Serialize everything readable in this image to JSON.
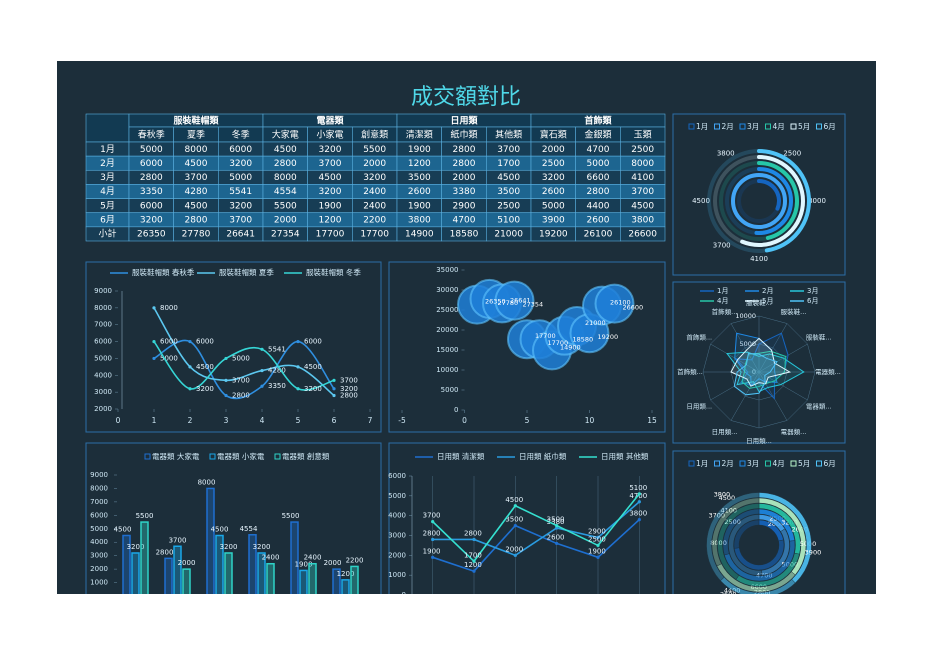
{
  "title": "成交額對比",
  "table": {
    "groups": [
      "服裝鞋帽類",
      "電器類",
      "日用類",
      "首飾類"
    ],
    "columns": [
      "春秋季",
      "夏季",
      "冬季",
      "大家電",
      "小家電",
      "創意類",
      "清潔類",
      "紙巾類",
      "其他類",
      "寶石類",
      "金銀類",
      "玉類"
    ],
    "rows": [
      [
        "1月",
        5000,
        8000,
        6000,
        4500,
        3200,
        5500,
        1900,
        2800,
        3700,
        2000,
        4700,
        2500
      ],
      [
        "2月",
        6000,
        4500,
        3200,
        2800,
        3700,
        2000,
        1200,
        2800,
        1700,
        2500,
        5000,
        8000
      ],
      [
        "3月",
        2800,
        3700,
        5000,
        8000,
        4500,
        3200,
        3500,
        2000,
        4500,
        3200,
        6600,
        4100
      ],
      [
        "4月",
        3350,
        4280,
        5541,
        4554,
        3200,
        2400,
        2600,
        3380,
        3500,
        2600,
        2800,
        3700
      ],
      [
        "5月",
        6000,
        4500,
        3200,
        5500,
        1900,
        2400,
        1900,
        2900,
        2500,
        5000,
        4400,
        4500
      ],
      [
        "6月",
        3200,
        2800,
        3700,
        2000,
        1200,
        2200,
        3800,
        4700,
        5100,
        3900,
        2600,
        3800
      ],
      [
        "小計",
        26350,
        27780,
        26641,
        27354,
        17700,
        17700,
        14900,
        18580,
        21000,
        19200,
        26100,
        26600
      ]
    ]
  },
  "chart_data": [
    {
      "type": "radial",
      "categories": [
        "1月",
        "2月",
        "3月",
        "4月",
        "5月",
        "6月"
      ],
      "values": [
        2500,
        8000,
        4100,
        3700,
        4500,
        3800
      ],
      "colors": [
        "#1565c0",
        "#42a5f5",
        "#1e88e5",
        "#26c6a8",
        "#e0f7ff",
        "#4fc3f7"
      ],
      "rlim": [
        0,
        8000
      ]
    },
    {
      "type": "line",
      "smooth": true,
      "x": [
        1,
        2,
        3,
        4,
        5,
        6
      ],
      "xlim": [
        0,
        7
      ],
      "xticks": [
        0,
        1,
        2,
        3,
        4,
        5,
        6,
        7
      ],
      "ylim": [
        2000,
        9000
      ],
      "yticks": [
        2000,
        3000,
        4000,
        5000,
        6000,
        7000,
        8000,
        9000
      ],
      "series": [
        {
          "name": "服裝鞋帽類 春秋季",
          "color": "#2f8fe0",
          "values": [
            5000,
            6000,
            2800,
            3350,
            6000,
            3200
          ]
        },
        {
          "name": "服裝鞋帽類 夏季",
          "color": "#5cc8f0",
          "values": [
            8000,
            4500,
            3700,
            4280,
            4500,
            2800
          ]
        },
        {
          "name": "服裝鞋帽類 冬季",
          "color": "#36d6d6",
          "values": [
            6000,
            3200,
            5000,
            5541,
            3200,
            3700
          ]
        }
      ]
    },
    {
      "type": "bubble",
      "color": "#1e7fd8",
      "x": [
        1,
        2,
        3,
        4,
        5,
        6,
        7,
        8,
        9,
        10,
        11,
        12
      ],
      "values": [
        26350,
        27780,
        26641,
        27354,
        17700,
        17700,
        14900,
        18580,
        21000,
        19200,
        26100,
        26600
      ],
      "xlim": [
        -5,
        15
      ],
      "xticks": [
        -5,
        0,
        5,
        10,
        15
      ],
      "ylim": [
        0,
        35000
      ],
      "yticks": [
        0,
        5000,
        10000,
        15000,
        20000,
        25000,
        30000,
        35000
      ]
    },
    {
      "type": "radar",
      "categories": [
        "服裝鞋...",
        "服裝鞋...",
        "服裝鞋...",
        "電器類...",
        "電器類...",
        "電器類...",
        "日用類...",
        "日用類...",
        "日用類...",
        "首飾類...",
        "首飾類...",
        "首飾類..."
      ],
      "rlim": [
        0,
        10000
      ],
      "rticks": [
        0,
        5000,
        10000
      ],
      "series": [
        {
          "name": "1月",
          "color": "#1565c0",
          "values": [
            5000,
            8000,
            6000,
            4500,
            3200,
            5500,
            1900,
            2800,
            3700,
            2000,
            4700,
            2500
          ]
        },
        {
          "name": "2月",
          "color": "#1e88e5",
          "values": [
            6000,
            4500,
            3200,
            2800,
            3700,
            2000,
            1200,
            2800,
            1700,
            2500,
            5000,
            8000
          ]
        },
        {
          "name": "3月",
          "color": "#26c6da",
          "values": [
            2800,
            3700,
            5000,
            8000,
            4500,
            3200,
            3500,
            2000,
            4500,
            3200,
            6600,
            4100
          ]
        },
        {
          "name": "4月",
          "color": "#26c6a8",
          "values": [
            3350,
            4280,
            5541,
            4554,
            3200,
            2400,
            2600,
            3380,
            3500,
            2600,
            2800,
            3700
          ]
        },
        {
          "name": "5月",
          "color": "#e0f7ff",
          "values": [
            6000,
            4500,
            3200,
            5500,
            1900,
            2400,
            1900,
            2900,
            2500,
            5000,
            4400,
            4500
          ]
        },
        {
          "name": "6月",
          "color": "#4fc3f7",
          "values": [
            3200,
            2800,
            3700,
            2000,
            1200,
            2200,
            3800,
            4700,
            5100,
            3900,
            2600,
            3800
          ]
        }
      ]
    },
    {
      "type": "bar",
      "ylim": [
        0,
        9000
      ],
      "yticks": [
        1000,
        2000,
        3000,
        4000,
        5000,
        6000,
        7000,
        8000,
        9000
      ],
      "series": [
        {
          "name": "電器類 大家電",
          "color": "#1e6fd0",
          "values": [
            4500,
            2800,
            8000,
            4554,
            5500,
            2000
          ]
        },
        {
          "name": "電器類 小家電",
          "color": "#1aa7e8",
          "values": [
            3200,
            3700,
            4500,
            3200,
            1900,
            1200
          ]
        },
        {
          "name": "電器類 創意類",
          "color": "#2ed3c8",
          "values": [
            5500,
            2000,
            3200,
            2400,
            2400,
            2200
          ]
        }
      ]
    },
    {
      "type": "line",
      "smooth": false,
      "ylim": [
        0,
        6000
      ],
      "yticks": [
        0,
        1000,
        2000,
        3000,
        4000,
        5000,
        6000
      ],
      "series": [
        {
          "name": "日用類 清潔類",
          "color": "#1e6fd0",
          "values": [
            1900,
            1200,
            3500,
            2600,
            1900,
            3800
          ]
        },
        {
          "name": "日用類 紙巾類",
          "color": "#2a9be0",
          "values": [
            2800,
            2800,
            2000,
            3380,
            2900,
            4700
          ]
        },
        {
          "name": "日用類 其他類",
          "color": "#35e0d0",
          "values": [
            3700,
            1700,
            4500,
            3500,
            2500,
            5100
          ]
        }
      ]
    },
    {
      "type": "donut",
      "series": [
        {
          "name": "1月",
          "color": "#1565c0",
          "values": [
            2000,
            4700,
            2500
          ]
        },
        {
          "name": "2月",
          "color": "#42a5f5",
          "values": [
            2500,
            5000,
            8000
          ]
        },
        {
          "name": "3月",
          "color": "#1e88e5",
          "values": [
            3200,
            6600,
            4100
          ]
        },
        {
          "name": "4月",
          "color": "#26c6a8",
          "values": [
            2600,
            2800,
            3700
          ]
        },
        {
          "name": "5月",
          "color": "#b9f6ca",
          "values": [
            5000,
            4400,
            4500
          ]
        },
        {
          "name": "6月",
          "color": "#4fc3f7",
          "values": [
            3900,
            2600,
            3800
          ]
        }
      ]
    }
  ]
}
